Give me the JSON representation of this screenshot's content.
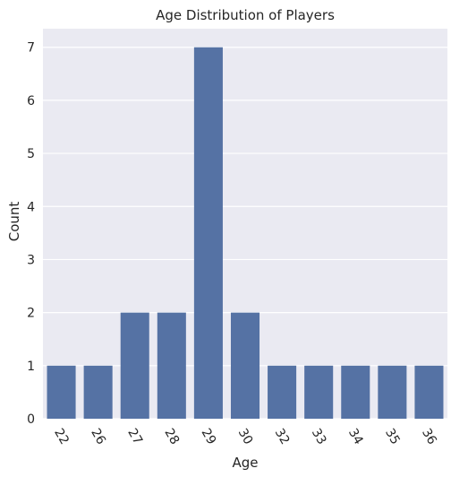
{
  "chart_data": {
    "type": "bar",
    "title": "Age Distribution of Players",
    "xlabel": "Age",
    "ylabel": "Count",
    "categories": [
      "22",
      "26",
      "27",
      "28",
      "29",
      "30",
      "32",
      "33",
      "34",
      "35",
      "36"
    ],
    "values": [
      1,
      1,
      2,
      2,
      7,
      2,
      1,
      1,
      1,
      1,
      1
    ],
    "ylim": [
      0,
      7.35
    ],
    "yticks": [
      "0",
      "1",
      "2",
      "3",
      "4",
      "5",
      "6",
      "7"
    ],
    "grid": true,
    "x_tick_rotation": -60,
    "colors": {
      "bar": "#5572a4",
      "plot_background": "#eaeaf2",
      "grid": "#ffffff",
      "text": "#262626"
    }
  }
}
